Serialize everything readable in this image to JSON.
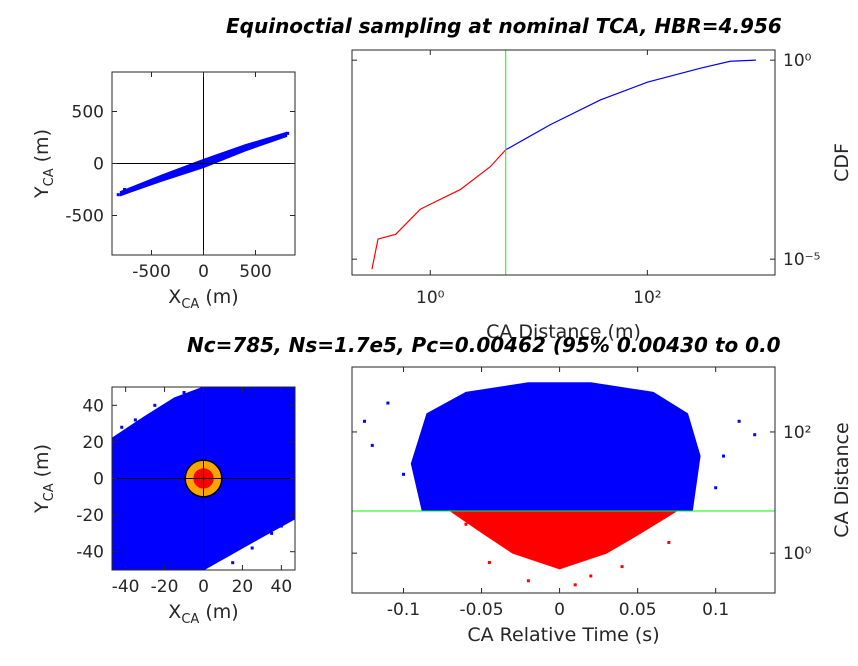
{
  "chart_data": [
    {
      "type": "scatter",
      "xlim": [
        -880,
        880
      ],
      "ylim": [
        -880,
        880
      ],
      "xticks": [
        -500,
        0,
        500
      ],
      "yticks": [
        -500,
        0,
        500
      ],
      "xlabel": [
        "X",
        "CA",
        " (m)"
      ],
      "ylabel": [
        "Y",
        "CA",
        " (m)"
      ],
      "yaxis": "left",
      "reference_lines": {
        "x": 0,
        "y": 0,
        "color": "#000000"
      },
      "regions": [
        {
          "color": "#0000ff",
          "x": [
            -800,
            -400,
            0,
            400,
            800,
            800,
            400,
            0,
            -400,
            -800
          ],
          "y": [
            -270,
            -110,
            40,
            180,
            300,
            260,
            120,
            -40,
            -170,
            -310
          ]
        }
      ],
      "series": [
        {
          "color": "#0000ff",
          "x": [
            -820,
            810,
            -760,
            780
          ],
          "y": [
            -300,
            290,
            -250,
            270
          ]
        }
      ]
    },
    {
      "type": "line",
      "title": "Equinoctial sampling at nominal TCA, HBR=4.956",
      "xscale": "log",
      "yscale": "log",
      "xlim": [
        0.19,
        1500
      ],
      "ylim": [
        4e-06,
        1.8
      ],
      "xticks": [
        {
          "value": 1,
          "label": "10⁰"
        },
        {
          "value": 100,
          "label": "10²"
        }
      ],
      "yticks": [
        {
          "value": 1e-05,
          "label": "10⁻⁵"
        },
        {
          "value": 1,
          "label": "10⁰"
        }
      ],
      "xlabel": "CA Distance (m)",
      "ylabel": "CDF",
      "yaxis": "right",
      "vline": {
        "value": 4.956,
        "color": "#00ff00"
      },
      "series": [
        {
          "color": "#ff0000",
          "x": [
            0.29,
            0.33,
            0.48,
            0.81,
            1,
            1.89,
            3.57,
            4.956
          ],
          "values": [
            5.6e-06,
            3.2e-05,
            4.2e-05,
            0.00018,
            0.00024,
            0.00056,
            0.0021,
            0.0056
          ]
        },
        {
          "color": "#0000ff",
          "x": [
            4.956,
            12.8,
            36.9,
            100,
            309,
            580,
            1000
          ],
          "values": [
            0.0056,
            0.024,
            0.1,
            0.28,
            0.63,
            0.94,
            1
          ]
        }
      ]
    },
    {
      "type": "scatter",
      "xlim": [
        -47,
        47
      ],
      "ylim": [
        -50,
        50
      ],
      "xticks": [
        -40,
        -20,
        0,
        20,
        40
      ],
      "yticks": [
        -40,
        -20,
        0,
        20,
        40
      ],
      "xlabel": [
        "X",
        "CA",
        " (m)"
      ],
      "ylabel": [
        "Y",
        "CA",
        " (m)"
      ],
      "yaxis": "left",
      "reference_lines": {
        "x": 0,
        "y": 0,
        "color": "#000000"
      },
      "hbr_circle": {
        "r": 4.956,
        "fill": "#ffa500",
        "inner": "#ff0000"
      },
      "regions": [
        {
          "color": "#0000ff",
          "x": [
            -47,
            -30,
            -15,
            0,
            47,
            47,
            30,
            0,
            -47
          ],
          "y": [
            22,
            34,
            44,
            50,
            50,
            -22,
            -32,
            -50,
            -50
          ]
        }
      ],
      "series": [
        {
          "color": "#0000ff",
          "x": [
            -35,
            -25,
            -42,
            35,
            25,
            40,
            -10,
            15
          ],
          "y": [
            32,
            40,
            28,
            -30,
            -38,
            -26,
            47,
            -46
          ]
        }
      ]
    },
    {
      "type": "scatter",
      "title": "Nc=785, Ns=1.7e5, Pc=0.00462 (95% 0.00430 to 0.0",
      "yscale": "log",
      "xlim": [
        -0.133,
        0.138
      ],
      "ylim": [
        0.22,
        1180
      ],
      "xticks": [
        -0.1,
        -0.05,
        0,
        0.05,
        0.1
      ],
      "yticks": [
        {
          "value": 1,
          "label": "10⁰"
        },
        {
          "value": 100,
          "label": "10²"
        }
      ],
      "xlabel": "CA Relative Time (s)",
      "ylabel": "CA Distance",
      "yaxis": "right",
      "hline": {
        "value": 4.956,
        "color": "#00ff00"
      },
      "regions": [
        {
          "color": "#0000ff",
          "x": [
            -0.088,
            -0.095,
            -0.085,
            -0.06,
            -0.02,
            0.02,
            0.06,
            0.082,
            0.09,
            0.085
          ],
          "y": [
            4.956,
            30,
            200,
            450,
            650,
            650,
            450,
            200,
            40,
            4.956
          ]
        },
        {
          "color": "#ff0000",
          "x": [
            -0.07,
            0.075,
            0.05,
            0.03,
            0,
            -0.03,
            -0.05
          ],
          "y": [
            4.956,
            4.956,
            2,
            1,
            0.55,
            1,
            2.2
          ]
        }
      ],
      "series": [
        {
          "color": "#0000ff",
          "x": [
            -0.12,
            -0.125,
            0.125,
            0.115,
            -0.11,
            0.105,
            -0.1,
            0.1
          ],
          "y": [
            60,
            150,
            90,
            150,
            300,
            40,
            20,
            12
          ]
        },
        {
          "color": "#ff0000",
          "x": [
            -0.02,
            0.01,
            0.04,
            -0.045,
            0.07,
            -0.06,
            0.02
          ],
          "y": [
            0.35,
            0.3,
            0.6,
            0.7,
            1.5,
            3,
            0.42
          ]
        }
      ]
    }
  ]
}
